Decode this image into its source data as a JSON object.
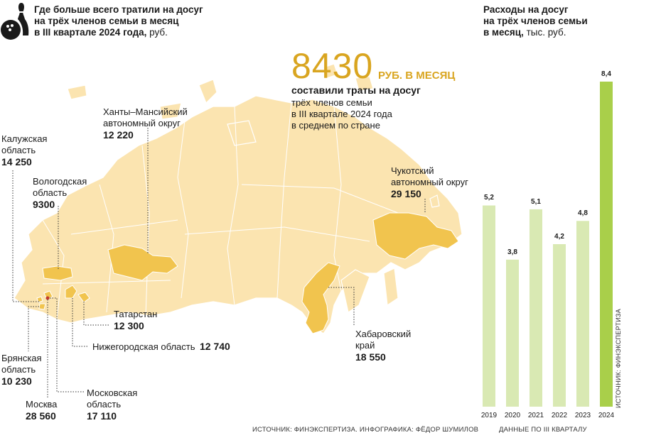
{
  "map_title": {
    "line1": "Где больше всего тратили на досуг",
    "line2": "на трёх членов семьи в месяц",
    "line3": "в III квартале 2024 года,",
    "unit": " руб."
  },
  "chart_title": {
    "line1": "Расходы на досуг",
    "line2": "на трёх членов семьи",
    "line3": "в месяц,",
    "unit": " тыс. руб."
  },
  "headline": {
    "value": "8430",
    "unit": "РУБ. В МЕСЯЦ",
    "lead": "составили траты на досуг",
    "sub1": "трёх членов семьи",
    "sub2": "в III квартале 2024 года",
    "sub3": "в среднем по стране"
  },
  "regions": [
    {
      "name1": "Ханты–Мансийский",
      "name2": "автономный округ",
      "value": "12 220"
    },
    {
      "name1": "Калужская",
      "name2": "область",
      "value": "14 250"
    },
    {
      "name1": "Вологодская",
      "name2": "область",
      "value": "9300"
    },
    {
      "name1": "Чукотский",
      "name2": "автономный округ",
      "value": "29 150"
    },
    {
      "name1": "Татарстан",
      "name2": "",
      "value": "12 300"
    },
    {
      "name1": "Нижегородская область",
      "name2": "",
      "value": "12 740"
    },
    {
      "name1": "Хабаровский",
      "name2": "край",
      "value": "18 550"
    },
    {
      "name1": "Брянская",
      "name2": "область",
      "value": "10 230"
    },
    {
      "name1": "Москва",
      "name2": "",
      "value": "28 560"
    },
    {
      "name1": "Московская",
      "name2": "область",
      "value": "17 110"
    }
  ],
  "map_source": "ИСТОЧНИК: ФИНЭКСПЕРТИЗА. ИНФОГРАФИКА: ФЁДОР ШУМИЛОВ",
  "chart_source": "ИСТОЧНИК: ФИНЭКСПЕРТИЗА",
  "chart_note": "ДАННЫЕ ПО III КВАРТАЛУ",
  "colors": {
    "accent": "#d9a520",
    "bar": "#d9e9b3",
    "bar_highlight": "#a9cf4a",
    "map_base": "#fbe4b0",
    "map_highlight": "#f1c44e"
  },
  "icon": "bowling-icon",
  "chart_data": {
    "type": "bar",
    "title": "Расходы на досуг на трёх членов семьи в месяц, тыс. руб.",
    "categories": [
      "2019",
      "2020",
      "2021",
      "2022",
      "2023",
      "2024"
    ],
    "values": [
      5.2,
      3.8,
      5.1,
      4.2,
      4.8,
      8.4
    ],
    "value_labels": [
      "5,2",
      "3,8",
      "5,1",
      "4,2",
      "4,8",
      "8,4"
    ],
    "xlabel": "ДАННЫЕ ПО III КВАРТАЛУ",
    "ylabel": "",
    "ylim": [
      0,
      8.4
    ],
    "grid": false,
    "highlight": "2024"
  }
}
